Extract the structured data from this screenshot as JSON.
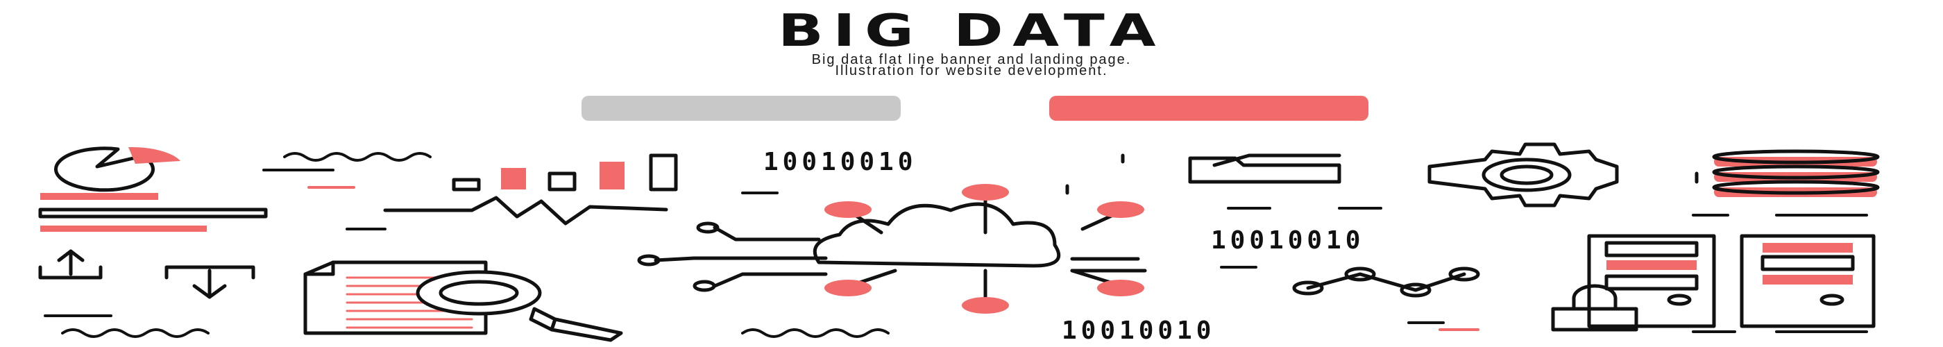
{
  "banner": {
    "title": "BIG DATA",
    "subtitle_line1": "Big data flat line banner and landing page.",
    "subtitle_line2": "Illustration for website development."
  },
  "buttons": {
    "left_label": "",
    "right_label": "",
    "left_color": "#c8c8c8",
    "right_color": "#f26b6b"
  },
  "binary": {
    "top": "10010010",
    "middle": "10010010",
    "bottom": "10010010"
  },
  "colors": {
    "accent": "#f26b6b",
    "ink": "#111111",
    "muted": "#c8c8c8"
  },
  "icons": [
    "pie-chart-icon",
    "bar-chart-icon",
    "line-chart-icon",
    "cloud-network-icon",
    "folder-icon",
    "gear-icon",
    "database-icon",
    "upload-icon",
    "download-icon",
    "document-search-icon",
    "node-graph-icon",
    "server-rack-icon",
    "lock-icon"
  ]
}
